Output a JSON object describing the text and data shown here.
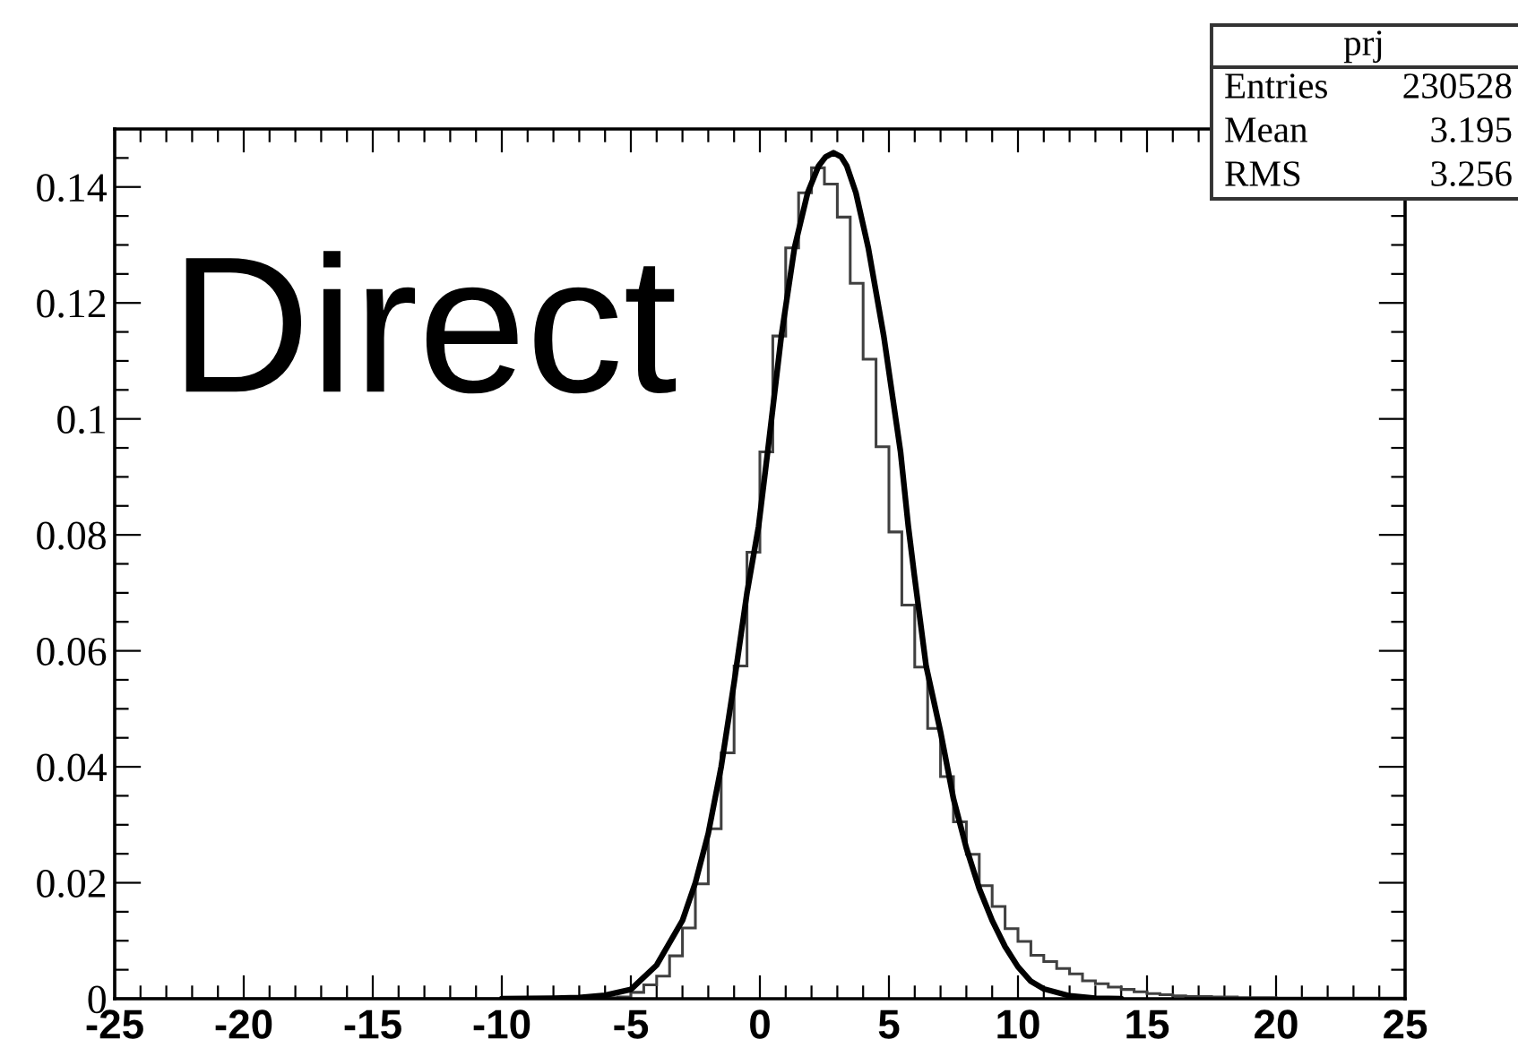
{
  "chart_data": {
    "type": "histogram",
    "series": [
      {
        "color": "#404040",
        "bins": [
          -25,
          -24.5,
          -24,
          -23.5,
          -23,
          -22.5,
          -22,
          -21.5,
          -21,
          -20.5,
          -20,
          -19.5,
          -19,
          -18.5,
          -18,
          -17.5,
          -17,
          -16.5,
          -16,
          -15.5,
          -15,
          -14.5,
          -14,
          -13.5,
          -13,
          -12.5,
          -12,
          -11.5,
          -11,
          -10.5,
          -10,
          -9.5,
          -9,
          -8.5,
          -8,
          -7.5,
          -7,
          -6.5,
          -6,
          -5.5,
          -5,
          -4.5,
          -4,
          -3.5,
          -3,
          -2.5,
          -2,
          -1.5,
          -1,
          -0.5,
          0,
          0.5,
          1,
          1.5,
          2,
          2.5,
          3,
          3.5,
          4,
          4.5,
          5,
          5.5,
          6,
          6.5,
          7,
          7.5,
          8,
          8.5,
          9,
          9.5,
          10,
          10.5,
          11,
          11.5,
          12,
          12.5,
          13,
          13.5,
          14,
          14.5,
          15,
          15.5,
          16,
          16.5,
          17,
          17.5,
          18,
          18.5,
          19,
          19.5,
          20,
          20.5,
          21,
          21.5,
          22,
          22.5,
          23,
          23.5,
          24,
          24.5,
          25
        ],
        "values": [
          0,
          0,
          0,
          0,
          0,
          0,
          0,
          0,
          0,
          0,
          0,
          0,
          0,
          0,
          0,
          0,
          0,
          0,
          0,
          0,
          0,
          0,
          0,
          0,
          0,
          0,
          0,
          0,
          0,
          0,
          0,
          0,
          0,
          0,
          0,
          0,
          0,
          0.0001,
          0.0002,
          0.0003,
          0.0011,
          0.0024,
          0.0039,
          0.0074,
          0.0122,
          0.0198,
          0.0293,
          0.0424,
          0.0574,
          0.077,
          0.0943,
          0.1143,
          0.1295,
          0.139,
          0.1433,
          0.1405,
          0.1348,
          0.1234,
          0.1103,
          0.0952,
          0.0805,
          0.0679,
          0.0572,
          0.0466,
          0.0383,
          0.0305,
          0.0249,
          0.0195,
          0.0159,
          0.0121,
          0.0099,
          0.0075,
          0.0064,
          0.0052,
          0.0043,
          0.0031,
          0.0026,
          0.002,
          0.0016,
          0.0012,
          0.0009,
          0.0007,
          0.0005,
          0.0004,
          0.0004,
          0.0003,
          0.0003,
          0.0002,
          0.0002,
          0.0002,
          0.0001,
          0.0001,
          0.0001,
          0.0001,
          0.0001,
          0.0001,
          0.0001,
          0.0001,
          0.0001,
          0.0001
        ]
      },
      {
        "type": "line",
        "color": "#000000",
        "x": [
          -10,
          -8,
          -7,
          -6,
          -5,
          -4,
          -3,
          -2.5,
          -2,
          -1.5,
          -1,
          -0.5,
          -0.05,
          0.3,
          0.83,
          1.34,
          1.85,
          2.27,
          2.55,
          2.85,
          3.15,
          3.37,
          3.72,
          4.2,
          4.8,
          5.45,
          5.75,
          5.98,
          6.44,
          7,
          7.5,
          8,
          8.5,
          9,
          9.5,
          10,
          10.5,
          11,
          12,
          13,
          14
        ],
        "values": [
          0,
          0.0001,
          0.0002,
          0.0006,
          0.0016,
          0.0058,
          0.0135,
          0.02,
          0.0285,
          0.04,
          0.0545,
          0.07,
          0.0815,
          0.0943,
          0.1143,
          0.1295,
          0.139,
          0.1436,
          0.1452,
          0.1459,
          0.1452,
          0.1436,
          0.139,
          0.1295,
          0.1143,
          0.0943,
          0.0815,
          0.0732,
          0.0574,
          0.046,
          0.0345,
          0.026,
          0.019,
          0.0135,
          0.009,
          0.0055,
          0.003,
          0.0017,
          0.0005,
          0.0001,
          0
        ]
      }
    ],
    "xlim": [
      -25,
      25
    ],
    "ylim": [
      0,
      0.15
    ],
    "xticks": [
      -25,
      {
        "value": -24,
        "label": null
      },
      {
        "value": -23,
        "label": null
      },
      {
        "value": -22,
        "label": null
      },
      {
        "value": -21,
        "label": null
      },
      -20,
      {
        "value": -19,
        "label": null
      },
      {
        "value": -18,
        "label": null
      },
      {
        "value": -17,
        "label": null
      },
      {
        "value": -16,
        "label": null
      },
      -15,
      {
        "value": -14,
        "label": null
      },
      {
        "value": -13,
        "label": null
      },
      {
        "value": -12,
        "label": null
      },
      {
        "value": -11,
        "label": null
      },
      -10,
      {
        "value": -9,
        "label": null
      },
      {
        "value": -8,
        "label": null
      },
      {
        "value": -7,
        "label": null
      },
      {
        "value": -6,
        "label": null
      },
      -5,
      {
        "value": -4,
        "label": null
      },
      {
        "value": -3,
        "label": null
      },
      {
        "value": -2,
        "label": null
      },
      {
        "value": -1,
        "label": null
      },
      0,
      {
        "value": 1,
        "label": null
      },
      {
        "value": 2,
        "label": null
      },
      {
        "value": 3,
        "label": null
      },
      {
        "value": 4,
        "label": null
      },
      5,
      {
        "value": 6,
        "label": null
      },
      {
        "value": 7,
        "label": null
      },
      {
        "value": 8,
        "label": null
      },
      {
        "value": 9,
        "label": null
      },
      10,
      {
        "value": 11,
        "label": null
      },
      {
        "value": 12,
        "label": null
      },
      {
        "value": 13,
        "label": null
      },
      {
        "value": 14,
        "label": null
      },
      15,
      {
        "value": 16,
        "label": null
      },
      {
        "value": 17,
        "label": null
      },
      {
        "value": 18,
        "label": null
      },
      {
        "value": 19,
        "label": null
      },
      20,
      {
        "value": 21,
        "label": null
      },
      {
        "value": 22,
        "label": null
      },
      {
        "value": 23,
        "label": null
      },
      {
        "value": 24,
        "label": null
      },
      25
    ],
    "yticks": [
      0,
      {
        "value": 0.005,
        "label": null
      },
      {
        "value": 0.01,
        "label": null
      },
      {
        "value": 0.015,
        "label": null
      },
      0.02,
      {
        "value": 0.025,
        "label": null
      },
      {
        "value": 0.03,
        "label": null
      },
      {
        "value": 0.035,
        "label": null
      },
      0.04,
      {
        "value": 0.045,
        "label": null
      },
      {
        "value": 0.05,
        "label": null
      },
      {
        "value": 0.055,
        "label": null
      },
      0.06,
      {
        "value": 0.065,
        "label": null
      },
      {
        "value": 0.07,
        "label": null
      },
      {
        "value": 0.075,
        "label": null
      },
      0.08,
      {
        "value": 0.085,
        "label": null
      },
      {
        "value": 0.09,
        "label": null
      },
      {
        "value": 0.095,
        "label": null
      },
      0.1,
      {
        "value": 0.105,
        "label": null
      },
      {
        "value": 0.11,
        "label": null
      },
      {
        "value": 0.115,
        "label": null
      },
      0.12,
      {
        "value": 0.125,
        "label": null
      },
      {
        "value": 0.13,
        "label": null
      },
      {
        "value": 0.135,
        "label": null
      },
      0.14,
      {
        "value": 0.145,
        "label": null
      }
    ],
    "annotations": [
      "Direct",
      "prj",
      "Entries",
      "230528",
      "Mean",
      "3.195",
      "RMS",
      "3.256"
    ]
  }
}
